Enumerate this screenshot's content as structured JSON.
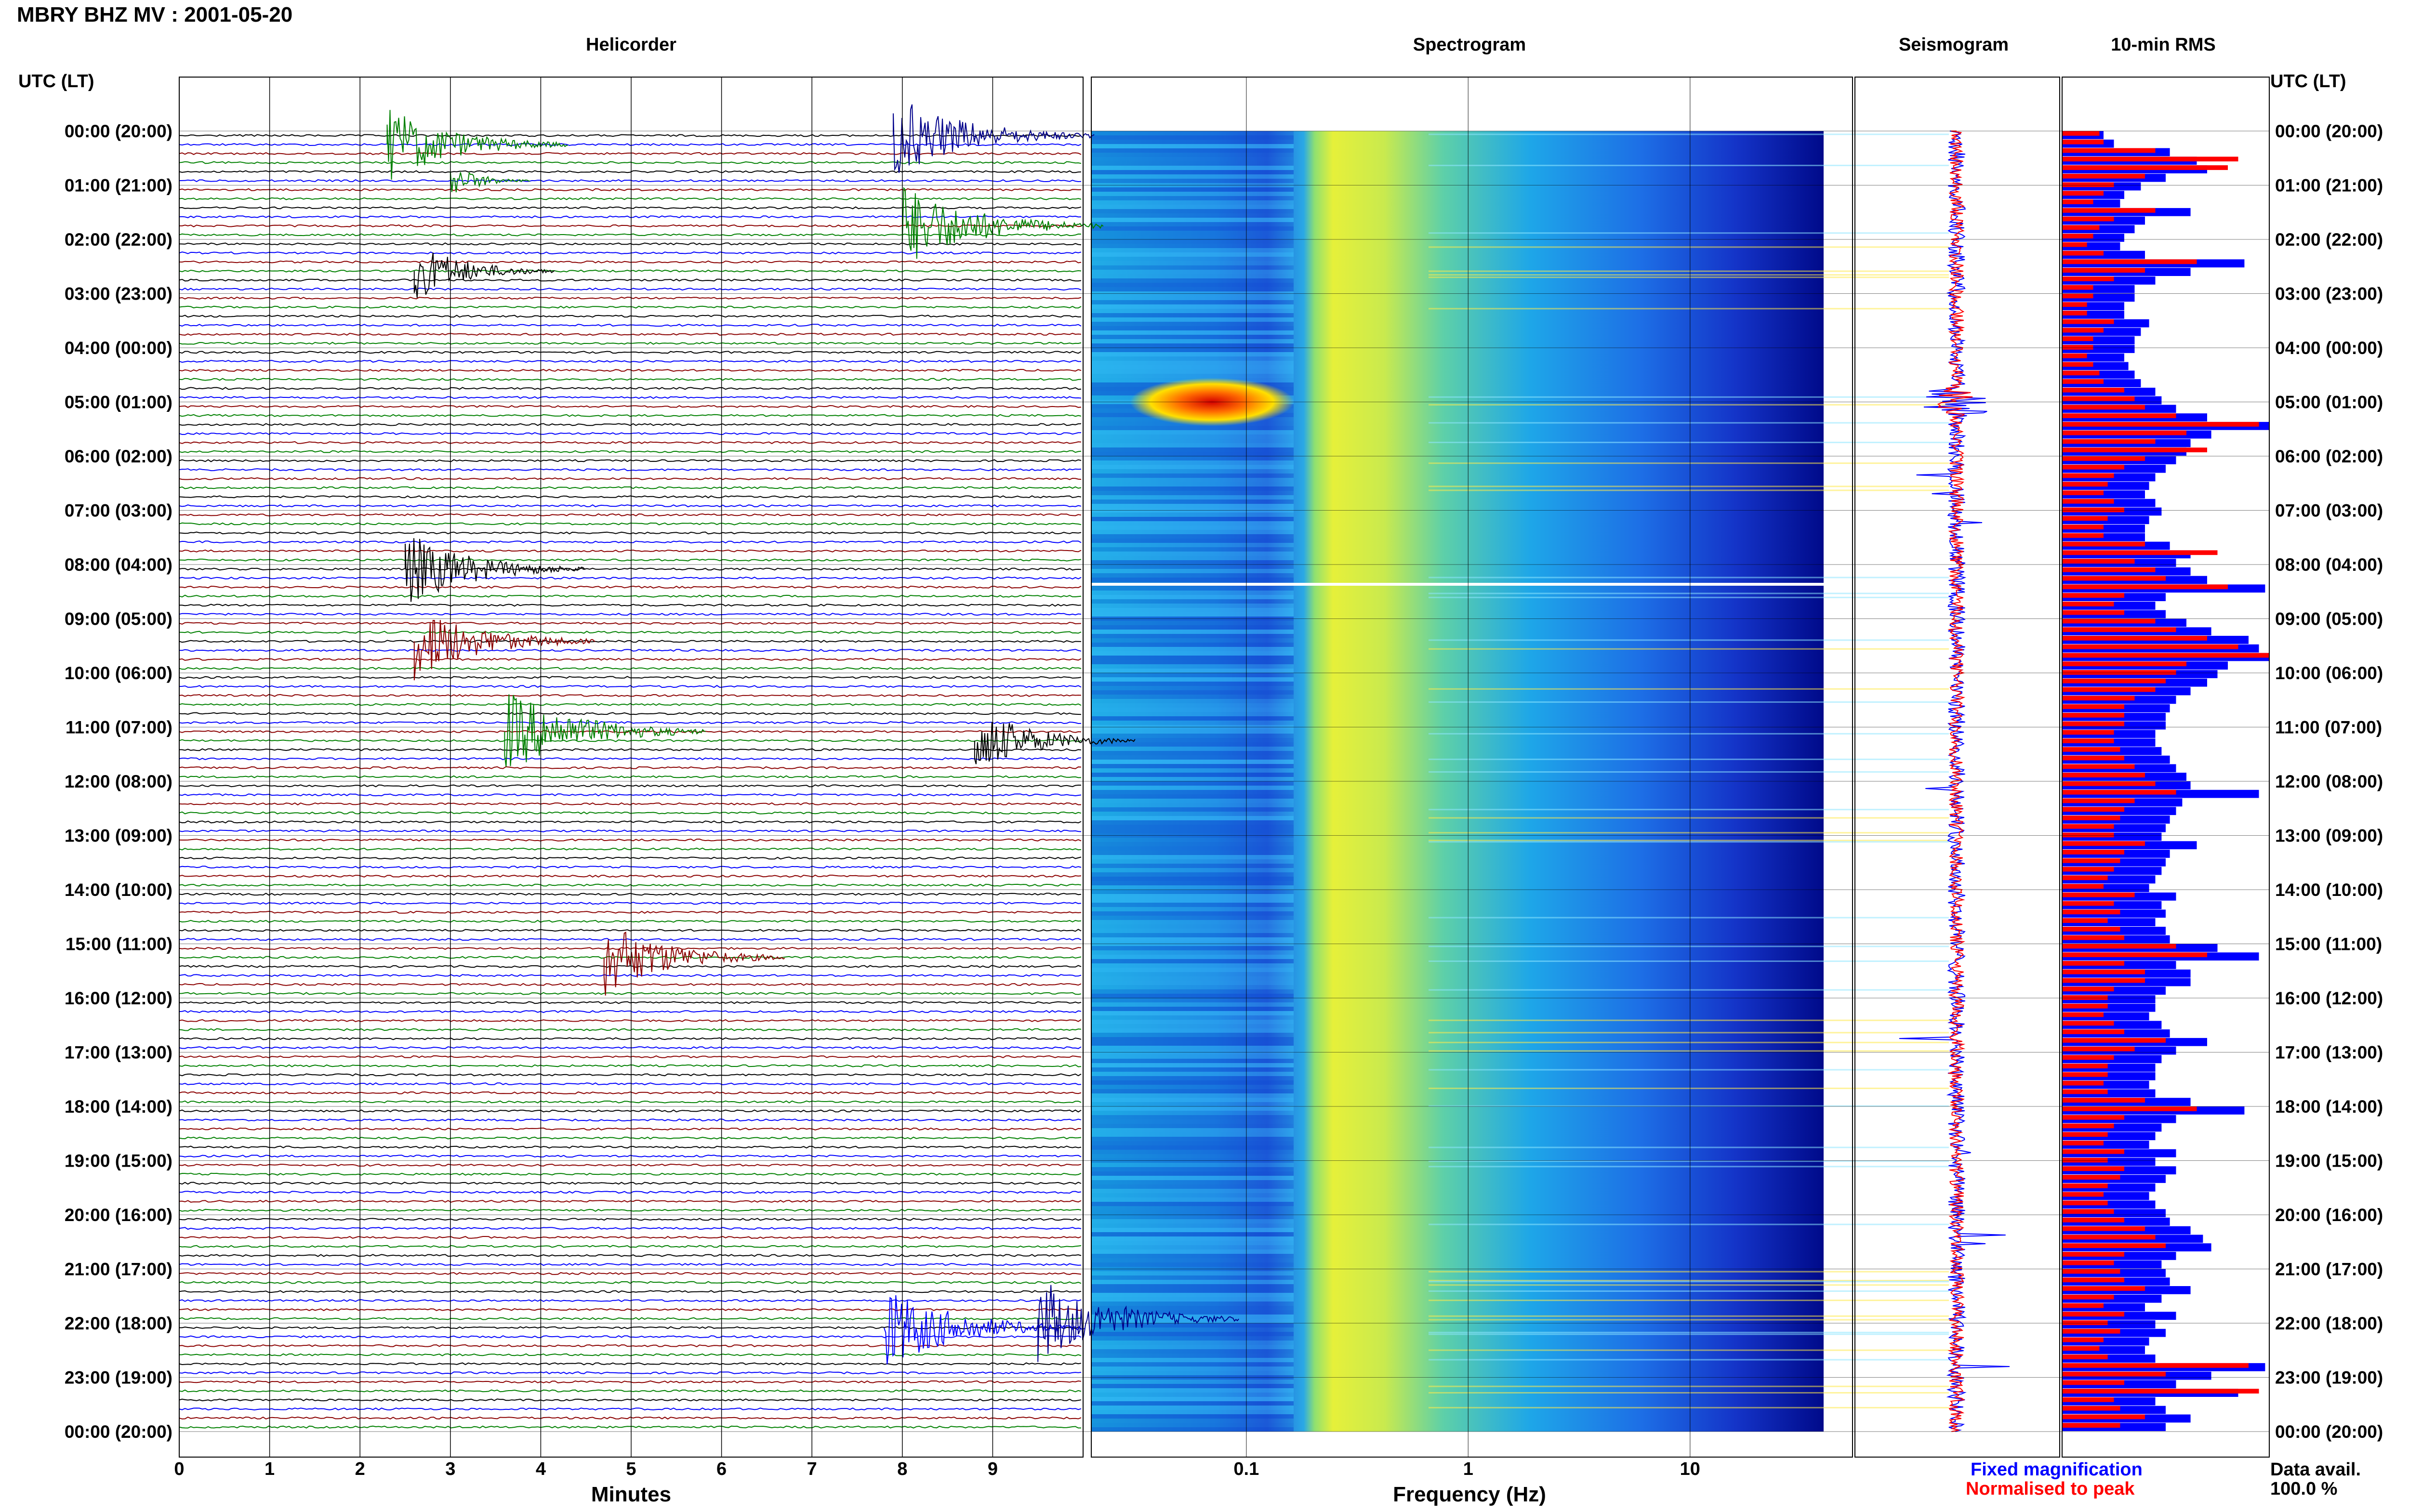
{
  "title": "MBRY BHZ MV : 2001-05-20",
  "panels": {
    "helicorder": "Helicorder",
    "spectrogram": "Spectrogram",
    "seismogram": "Seismogram",
    "rms": "10-min RMS"
  },
  "time_axis_label": "UTC (LT)",
  "hour_labels": [
    "00:00 (20:00)",
    "01:00 (21:00)",
    "02:00 (22:00)",
    "03:00 (23:00)",
    "04:00 (00:00)",
    "05:00 (01:00)",
    "06:00 (02:00)",
    "07:00 (03:00)",
    "08:00 (04:00)",
    "09:00 (05:00)",
    "10:00 (06:00)",
    "11:00 (07:00)",
    "12:00 (08:00)",
    "13:00 (09:00)",
    "14:00 (10:00)",
    "15:00 (11:00)",
    "16:00 (12:00)",
    "17:00 (13:00)",
    "18:00 (14:00)",
    "19:00 (15:00)",
    "20:00 (16:00)",
    "21:00 (17:00)",
    "22:00 (18:00)",
    "23:00 (19:00)",
    "00:00 (20:00)"
  ],
  "helicorder_xlabel": "Minutes",
  "helicorder_ticks": [
    "0",
    "1",
    "2",
    "3",
    "4",
    "5",
    "6",
    "7",
    "8",
    "9"
  ],
  "spectrogram_xlabel": "Frequency (Hz)",
  "spectrogram_ticks": [
    "0.1",
    "1",
    "10"
  ],
  "legend": {
    "fixed": "Fixed magnification",
    "normalised": "Normalised to peak"
  },
  "data_availability": {
    "label": "Data avail.",
    "value": "100.0 %"
  },
  "colors": {
    "blue": "#0000ff",
    "red": "#ff0000",
    "green": "#008000",
    "darkred": "#8b0000",
    "navy": "#00008b",
    "black": "#000000"
  },
  "chart_data": [
    {
      "type": "line",
      "name": "Helicorder",
      "xlabel": "Minutes",
      "xlim": [
        0,
        10
      ],
      "rows_per_hour": 6,
      "row_minutes": 10,
      "trace_colors": [
        "black",
        "blue",
        "darkred",
        "green"
      ],
      "events": [
        {
          "t_utc": "00:10",
          "minute": 2.3,
          "amp": 0.9,
          "color": "green"
        },
        {
          "t_utc": "00:00",
          "minute": 7.9,
          "amp": 1.0,
          "color": "navy"
        },
        {
          "t_utc": "00:50",
          "minute": 3.0,
          "amp": 0.4,
          "color": "green"
        },
        {
          "t_utc": "01:40",
          "minute": 8.0,
          "amp": 1.0,
          "color": "green"
        },
        {
          "t_utc": "02:30",
          "minute": 2.6,
          "amp": 0.7,
          "color": "black"
        },
        {
          "t_utc": "08:00",
          "minute": 2.5,
          "amp": 0.9,
          "color": "black"
        },
        {
          "t_utc": "09:20",
          "minute": 2.6,
          "amp": 0.9,
          "color": "darkred"
        },
        {
          "t_utc": "11:00",
          "minute": 3.6,
          "amp": 1.0,
          "color": "green"
        },
        {
          "t_utc": "11:10",
          "minute": 8.8,
          "amp": 0.8,
          "color": "black"
        },
        {
          "t_utc": "15:10",
          "minute": 4.7,
          "amp": 0.9,
          "color": "darkred"
        },
        {
          "t_utc": "22:00",
          "minute": 7.8,
          "amp": 1.0,
          "color": "blue"
        },
        {
          "t_utc": "21:50",
          "minute": 9.5,
          "amp": 1.0,
          "color": "navy"
        }
      ]
    },
    {
      "type": "heatmap",
      "name": "Spectrogram",
      "xlabel": "Frequency (Hz)",
      "x_scale": "log",
      "xlim": [
        0.02,
        40
      ],
      "colormap": "jet",
      "peak_band_hz": [
        0.25,
        0.6
      ],
      "highlight": {
        "t_utc": "05:00",
        "freq_hz": 0.07
      }
    },
    {
      "type": "line",
      "name": "Seismogram",
      "series": [
        {
          "name": "Fixed magnification",
          "color": "blue"
        },
        {
          "name": "Normalised to peak",
          "color": "red"
        }
      ]
    },
    {
      "type": "bar",
      "name": "10-min RMS",
      "series": [
        {
          "name": "Fixed magnification",
          "color": "blue",
          "values": [
            0.2,
            0.25,
            0.52,
            0.65,
            0.7,
            0.5,
            0.38,
            0.3,
            0.28,
            0.62,
            0.4,
            0.35,
            0.3,
            0.28,
            0.4,
            0.88,
            0.62,
            0.45,
            0.35,
            0.35,
            0.3,
            0.3,
            0.42,
            0.38,
            0.35,
            0.35,
            0.3,
            0.32,
            0.35,
            0.38,
            0.45,
            0.48,
            0.55,
            0.7,
            1.0,
            0.72,
            0.62,
            0.6,
            0.55,
            0.5,
            0.45,
            0.42,
            0.4,
            0.45,
            0.48,
            0.42,
            0.4,
            0.4,
            0.52,
            0.62,
            0.55,
            0.62,
            0.7,
            0.98,
            0.5,
            0.45,
            0.5,
            0.6,
            0.72,
            0.9,
            0.95,
            1.0,
            0.8,
            0.75,
            0.7,
            0.62,
            0.55,
            0.52,
            0.5,
            0.5,
            0.45,
            0.45,
            0.48,
            0.52,
            0.55,
            0.6,
            0.62,
            0.95,
            0.58,
            0.55,
            0.52,
            0.5,
            0.48,
            0.65,
            0.52,
            0.5,
            0.48,
            0.45,
            0.42,
            0.55,
            0.48,
            0.5,
            0.45,
            0.5,
            0.52,
            0.75,
            0.95,
            0.55,
            0.62,
            0.62,
            0.5,
            0.45,
            0.45,
            0.42,
            0.48,
            0.52,
            0.7,
            0.55,
            0.48,
            0.45,
            0.45,
            0.42,
            0.45,
            0.62,
            0.88,
            0.55,
            0.48,
            0.45,
            0.42,
            0.55,
            0.45,
            0.55,
            0.5,
            0.45,
            0.42,
            0.45,
            0.5,
            0.52,
            0.62,
            0.68,
            0.72,
            0.55,
            0.48,
            0.5,
            0.52,
            0.62,
            0.48,
            0.4,
            0.55,
            0.45,
            0.5,
            0.42,
            0.4,
            0.45,
            0.98,
            0.72,
            0.55,
            0.85,
            0.45,
            0.5,
            0.62,
            0.5
          ]
        },
        {
          "name": "Normalised to peak",
          "color": "red",
          "values": [
            0.18,
            0.2,
            0.45,
            0.85,
            0.8,
            0.4,
            0.25,
            0.2,
            0.15,
            0.45,
            0.25,
            0.18,
            0.15,
            0.12,
            0.2,
            0.65,
            0.4,
            0.25,
            0.15,
            0.15,
            0.12,
            0.12,
            0.25,
            0.2,
            0.15,
            0.15,
            0.12,
            0.15,
            0.18,
            0.2,
            0.3,
            0.35,
            0.4,
            0.55,
            0.95,
            0.6,
            0.45,
            0.7,
            0.4,
            0.3,
            0.25,
            0.22,
            0.2,
            0.25,
            0.3,
            0.22,
            0.2,
            0.2,
            0.4,
            0.75,
            0.35,
            0.45,
            0.5,
            0.8,
            0.3,
            0.25,
            0.3,
            0.45,
            0.55,
            0.7,
            0.85,
            1.0,
            0.6,
            0.55,
            0.5,
            0.45,
            0.35,
            0.3,
            0.3,
            0.3,
            0.25,
            0.25,
            0.28,
            0.3,
            0.35,
            0.4,
            0.45,
            0.55,
            0.35,
            0.3,
            0.28,
            0.25,
            0.25,
            0.4,
            0.3,
            0.28,
            0.25,
            0.22,
            0.2,
            0.35,
            0.25,
            0.28,
            0.22,
            0.28,
            0.3,
            0.55,
            0.7,
            0.3,
            0.4,
            0.4,
            0.25,
            0.22,
            0.22,
            0.2,
            0.25,
            0.3,
            0.5,
            0.35,
            0.25,
            0.22,
            0.22,
            0.2,
            0.22,
            0.4,
            0.65,
            0.3,
            0.25,
            0.22,
            0.2,
            0.3,
            0.22,
            0.3,
            0.28,
            0.22,
            0.2,
            0.22,
            0.25,
            0.3,
            0.4,
            0.45,
            0.5,
            0.3,
            0.25,
            0.28,
            0.3,
            0.4,
            0.25,
            0.2,
            0.3,
            0.22,
            0.28,
            0.2,
            0.18,
            0.22,
            0.9,
            0.5,
            0.3,
            0.95,
            0.25,
            0.28,
            0.4,
            0.28
          ]
        }
      ]
    }
  ]
}
